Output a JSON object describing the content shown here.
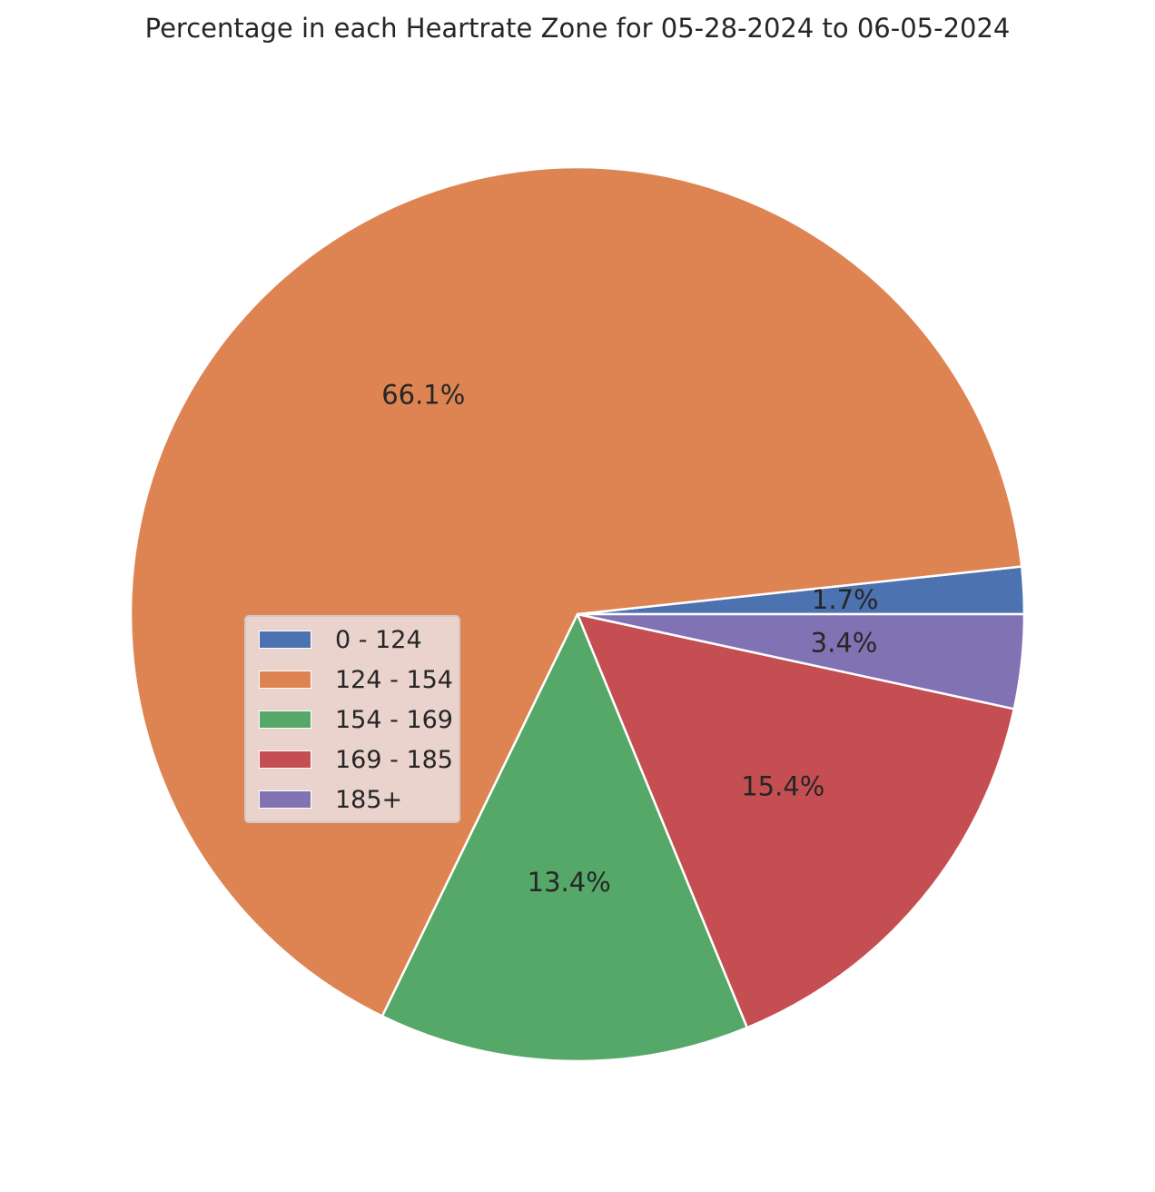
{
  "chart_data": {
    "type": "pie",
    "title": "Percentage in each Heartrate Zone for 05-28-2024 to 06-05-2024",
    "legend_position": "center-left",
    "series": [
      {
        "categories": [
          "0 - 124",
          "124 - 154",
          "154 - 169",
          "169 - 185",
          "185+"
        ],
        "values": [
          1.7,
          66.1,
          13.4,
          15.4,
          3.4
        ],
        "labels": [
          "1.7%",
          "66.1%",
          "13.4%",
          "15.4%",
          "3.4%"
        ],
        "colors": [
          "#4c72b0",
          "#dd8452",
          "#55a868",
          "#c44e52",
          "#8172b3"
        ]
      }
    ]
  }
}
